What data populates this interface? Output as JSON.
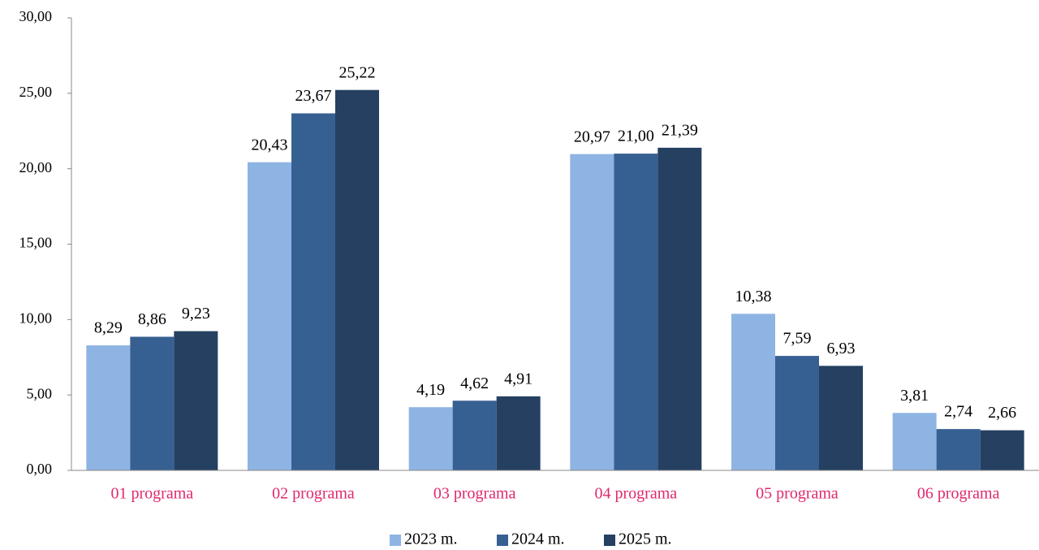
{
  "chart_data": {
    "type": "bar",
    "categories": [
      "01 programa",
      "02 programa",
      "03 programa",
      "04 programa",
      "05 programa",
      "06 programa"
    ],
    "series": [
      {
        "name": "2023 m.",
        "color": "#8eb4e3",
        "values": [
          8.29,
          20.43,
          4.19,
          20.97,
          10.38,
          3.81
        ],
        "value_labels": [
          "8,29",
          "20,43",
          "4,19",
          "20,97",
          "10,38",
          "3,81"
        ]
      },
      {
        "name": "2024 m.",
        "color": "#376092",
        "values": [
          8.86,
          23.67,
          4.62,
          21.0,
          7.59,
          2.74
        ],
        "value_labels": [
          "8,86",
          "23,67",
          "4,62",
          "21,00",
          "7,59",
          "2,74"
        ]
      },
      {
        "name": "2025 m.",
        "color": "#254061",
        "values": [
          9.23,
          25.22,
          4.91,
          21.39,
          6.93,
          2.66
        ],
        "value_labels": [
          "9,23",
          "25,22",
          "4,91",
          "21,39",
          "6,93",
          "2,66"
        ]
      }
    ],
    "ylim": [
      0,
      30
    ],
    "yticks": [
      {
        "value": 0,
        "label": "0,00"
      },
      {
        "value": 5,
        "label": "5,00"
      },
      {
        "value": 10,
        "label": "10,00"
      },
      {
        "value": 15,
        "label": "15,00"
      },
      {
        "value": 20,
        "label": "20,00"
      },
      {
        "value": 25,
        "label": "25,00"
      },
      {
        "value": 30,
        "label": "30,00"
      }
    ],
    "category_color": "#e0286e",
    "legend": "bottom"
  }
}
